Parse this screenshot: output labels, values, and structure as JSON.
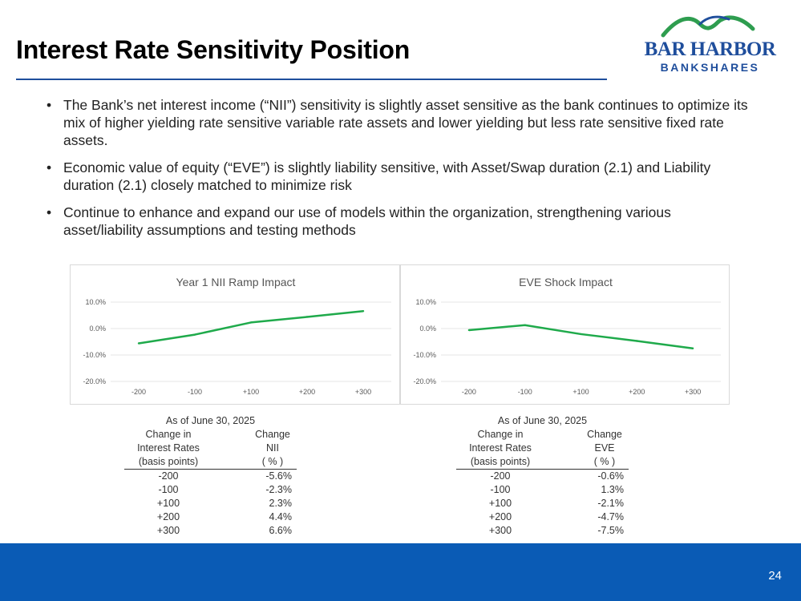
{
  "title": "Interest Rate Sensitivity Position",
  "logo": {
    "line1": "BAR HARBOR",
    "line2": "BANKSHARES",
    "colors": {
      "navy": "#1f4e9c",
      "green": "#2e9d4f"
    }
  },
  "bullets": [
    "The Bank’s net interest income (“NII”) sensitivity is slightly asset sensitive as the bank continues to optimize its mix of higher yielding rate sensitive variable rate assets and lower yielding but less rate sensitive fixed rate assets.",
    "Economic value of equity (“EVE”) is slightly liability sensitive, with Asset/Swap duration (2.1) and Liability duration (2.1) closely matched to minimize risk",
    "Continue to enhance and expand our use of models within the organization, strengthening various asset/liability assumptions and testing methods"
  ],
  "chart_data": [
    {
      "type": "line",
      "title": "Year 1 NII Ramp Impact",
      "categories": [
        "-200",
        "-100",
        "+100",
        "+200",
        "+300"
      ],
      "values": [
        -5.6,
        -2.3,
        2.3,
        4.4,
        6.6
      ],
      "ytick_labels": [
        "10.0%",
        "0.0%",
        "-10.0%",
        "-20.0%"
      ],
      "yticks": [
        10,
        0,
        -10,
        -20
      ],
      "ylim": [
        -20,
        10
      ],
      "color": "#1faa4b",
      "grid": true
    },
    {
      "type": "line",
      "title": "EVE Shock Impact",
      "categories": [
        "-200",
        "-100",
        "+100",
        "+200",
        "+300"
      ],
      "values": [
        -0.6,
        1.3,
        -2.1,
        -4.7,
        -7.5
      ],
      "ytick_labels": [
        "10.0%",
        "0.0%",
        "-10.0%",
        "-20.0%"
      ],
      "yticks": [
        10,
        0,
        -10,
        -20
      ],
      "ylim": [
        -20,
        10
      ],
      "color": "#1faa4b",
      "grid": true
    }
  ],
  "tables": {
    "nii": {
      "as_of": "As of June 30, 2025",
      "h1": [
        "Change in",
        "Interest Rates",
        "(basis points)"
      ],
      "h2": [
        "Change",
        "NII",
        "( % )"
      ],
      "rows": [
        [
          "-200",
          "-5.6%"
        ],
        [
          "-100",
          "-2.3%"
        ],
        [
          "+100",
          "2.3%"
        ],
        [
          "+200",
          "4.4%"
        ],
        [
          "+300",
          "6.6%"
        ]
      ]
    },
    "eve": {
      "as_of": "As of June 30, 2025",
      "h1": [
        "Change in",
        "Interest Rates",
        "(basis points)"
      ],
      "h2": [
        "Change",
        "EVE",
        "( % )"
      ],
      "rows": [
        [
          "-200",
          "-0.6%"
        ],
        [
          "-100",
          "1.3%"
        ],
        [
          "+100",
          "-2.1%"
        ],
        [
          "+200",
          "-4.7%"
        ],
        [
          "+300",
          "-7.5%"
        ]
      ]
    }
  },
  "footer": {
    "page_number": "24",
    "color": "#0a5bb5"
  }
}
